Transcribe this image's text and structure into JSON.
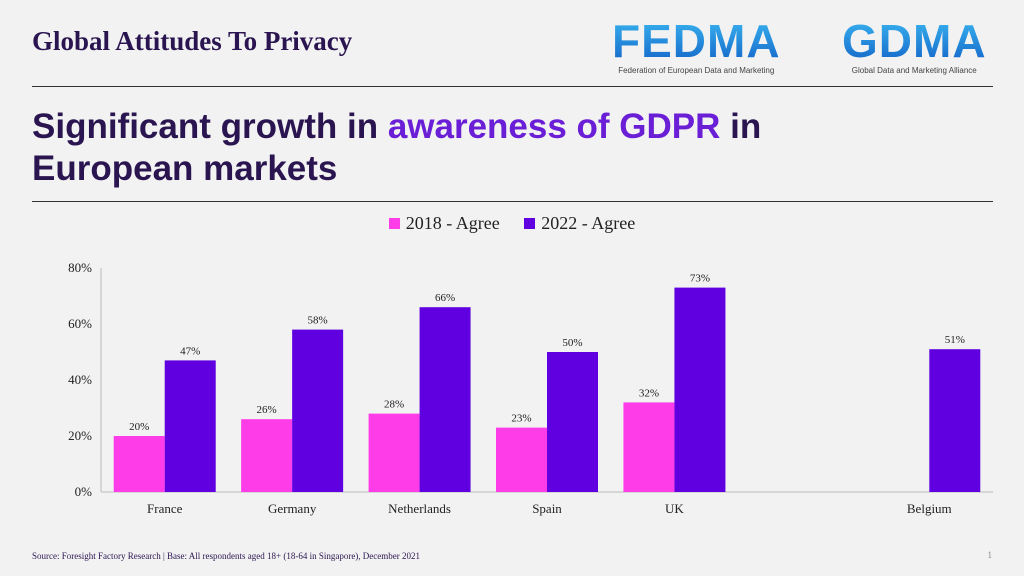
{
  "header": {
    "title": "Global Attitudes To Privacy"
  },
  "logos": [
    {
      "name": "FEDMA",
      "subtitle": "Federation of European Data and Marketing"
    },
    {
      "name": "GDMA",
      "subtitle": "Global Data and Marketing Alliance"
    }
  ],
  "slide_title": {
    "before": "Significant growth in ",
    "highlight": "awareness of GDPR",
    "after": " in European markets"
  },
  "footer": {
    "source": "Source: Foresight Factory Research | Base: All respondents aged 18+ (18-64 in Singapore), December 2021",
    "page": "1"
  },
  "colors": {
    "series_2018": "#ff3de8",
    "series_2022": "#6000e0",
    "title": "#2a1550",
    "highlight": "#6a1fd6"
  },
  "chart_data": {
    "type": "bar",
    "categories": [
      "France",
      "Germany",
      "Netherlands",
      "Spain",
      "UK",
      "",
      "Belgium"
    ],
    "series": [
      {
        "name": "2018 - Agree",
        "values": [
          20,
          26,
          28,
          23,
          32,
          null,
          null
        ]
      },
      {
        "name": "2022 - Agree",
        "values": [
          47,
          58,
          66,
          50,
          73,
          null,
          51
        ]
      }
    ],
    "ylim": [
      0,
      80
    ],
    "yticks": [
      "0%",
      "20%",
      "40%",
      "60%",
      "80%"
    ],
    "ytick_values": [
      0,
      20,
      40,
      60,
      80
    ],
    "legend": "top",
    "grid": false,
    "data_label_suffix": "%"
  }
}
